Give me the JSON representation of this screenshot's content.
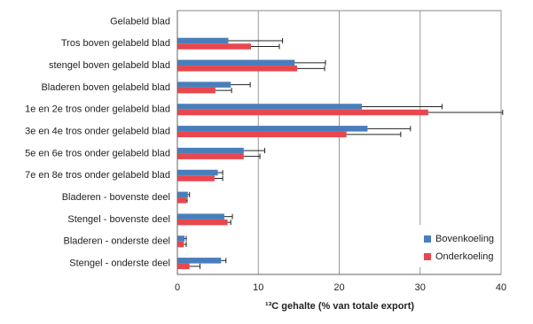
{
  "chart_data": {
    "type": "hbar",
    "x_label": "¹³C gehalte (% van totale export)",
    "categories": [
      "Gelabeld blad",
      "Tros boven gelabeld blad",
      "stengel boven gelabeld blad",
      "Bladeren boven gelabeld blad",
      "1e en 2e tros onder gelabeld blad",
      "3e en 4e tros onder gelabeld blad",
      "5e en 6e tros onder gelabeld blad",
      "7e en 8e tros onder gelabeld blad",
      "Bladeren - bovenste deel",
      "Stengel - bovenste deel",
      "Bladeren - onderste deel",
      "Stengel - onderste deel"
    ],
    "series": [
      {
        "name": "Bovenkoeling",
        "color": "#4a7ebb",
        "values": [
          null,
          6.3,
          14.5,
          6.6,
          22.8,
          23.5,
          8.2,
          5.0,
          1.3,
          5.8,
          0.9,
          5.4
        ],
        "errors": [
          null,
          6.7,
          3.8,
          2.4,
          9.9,
          5.3,
          2.6,
          0.6,
          0.2,
          1.0,
          0.2,
          0.6
        ]
      },
      {
        "name": "Onderkoeling",
        "color": "#e8474e",
        "values": [
          null,
          9.1,
          14.8,
          4.7,
          31.0,
          20.9,
          8.2,
          4.6,
          1.1,
          6.2,
          0.8,
          1.5
        ],
        "errors": [
          null,
          3.5,
          3.4,
          2.0,
          9.2,
          6.7,
          2.0,
          1.0,
          0.1,
          0.4,
          0.3,
          1.3
        ]
      }
    ],
    "xlim": [
      0,
      40
    ],
    "xticks": [
      0,
      10,
      20,
      30,
      40
    ],
    "grid": true,
    "legend": "lower right"
  }
}
